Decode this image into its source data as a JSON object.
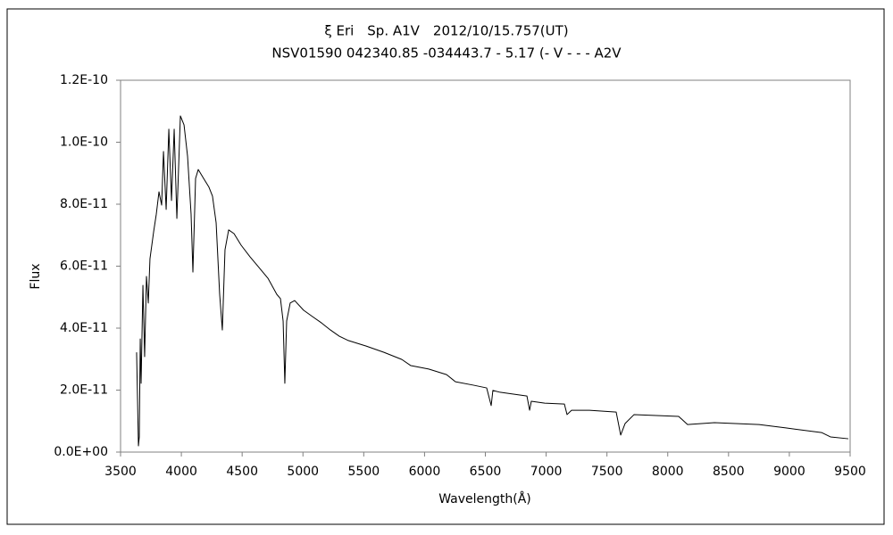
{
  "chart_data": {
    "type": "line",
    "title": "ξ Eri　Sp. A1V　2012/10/15.757(UT)",
    "subtitle": "NSV01590 042340.85 -034443.7 - 5.17 (- V - - - A2V",
    "x_label": "Wavelength(Å)",
    "y_label": "Flux",
    "xlim": [
      3500,
      9500
    ],
    "xticks": [
      3500,
      4000,
      4500,
      5000,
      5500,
      6000,
      6500,
      7000,
      7500,
      8000,
      8500,
      9000,
      9500
    ],
    "ylim": [
      0,
      1.2e-10
    ],
    "yticks": [
      {
        "value": 0,
        "label": "0.0E+00"
      },
      {
        "value": 2e-11,
        "label": "2.0E-11"
      },
      {
        "value": 4e-11,
        "label": "4.0E-11"
      },
      {
        "value": 6e-11,
        "label": "6.0E-11"
      },
      {
        "value": 8e-11,
        "label": "8.0E-11"
      },
      {
        "value": 1e-10,
        "label": "1.0E-10"
      },
      {
        "value": 1.2e-10,
        "label": "1.2E-10"
      }
    ],
    "grid": false,
    "series": [
      {
        "color": "#000000",
        "x": [
          3632,
          3647,
          3654,
          3662,
          3669,
          3684,
          3698,
          3713,
          3728,
          3742,
          3772,
          3794,
          3816,
          3838,
          3853,
          3875,
          3897,
          3919,
          3941,
          3963,
          3992,
          4022,
          4051,
          4080,
          4095,
          4117,
          4139,
          4183,
          4227,
          4256,
          4286,
          4315,
          4337,
          4359,
          4389,
          4433,
          4491,
          4565,
          4638,
          4712,
          4785,
          4815,
          4837,
          4851,
          4866,
          4895,
          4932,
          5005,
          5079,
          5152,
          5226,
          5299,
          5373,
          5520,
          5666,
          5813,
          5887,
          6034,
          6181,
          6254,
          6401,
          6511,
          6548,
          6562,
          6621,
          6731,
          6842,
          6864,
          6878,
          6988,
          7150,
          7172,
          7209,
          7356,
          7576,
          7613,
          7649,
          7723,
          8090,
          8163,
          8384,
          8751,
          8971,
          9265,
          9338,
          9485
        ],
        "values": [
          3.22e-11,
          2e-12,
          4.9e-12,
          3.65e-11,
          2.22e-11,
          5.38e-11,
          3.08e-11,
          5.67e-11,
          4.81e-11,
          6.24e-11,
          7.11e-11,
          7.68e-11,
          8.4e-11,
          7.97e-11,
          9.7e-11,
          7.83e-11,
          1.042e-10,
          8.12e-11,
          1.042e-10,
          7.54e-11,
          1.085e-10,
          1.056e-10,
          9.55e-11,
          7.68e-11,
          5.81e-11,
          8.83e-11,
          9.12e-11,
          8.83e-11,
          8.55e-11,
          8.26e-11,
          7.4e-11,
          5.09e-11,
          3.94e-11,
          6.53e-11,
          7.17e-11,
          7.05e-11,
          6.68e-11,
          6.3e-11,
          5.96e-11,
          5.61e-11,
          5.09e-11,
          4.95e-11,
          4.23e-11,
          2.22e-11,
          4.23e-11,
          4.81e-11,
          4.89e-11,
          4.58e-11,
          4.37e-11,
          4.17e-11,
          3.94e-11,
          3.74e-11,
          3.6e-11,
          3.42e-11,
          3.22e-11,
          2.99e-11,
          2.79e-11,
          2.68e-11,
          2.5e-11,
          2.27e-11,
          2.16e-11,
          2.07e-11,
          1.5e-11,
          1.99e-11,
          1.93e-11,
          1.87e-11,
          1.81e-11,
          1.35e-11,
          1.64e-11,
          1.58e-11,
          1.55e-11,
          1.21e-11,
          1.35e-11,
          1.35e-11,
          1.29e-11,
          5.5e-12,
          9.2e-12,
          1.21e-11,
          1.15e-11,
          8.9e-12,
          9.5e-12,
          8.9e-12,
          7.8e-12,
          6.3e-12,
          4.9e-12,
          4.3e-12
        ]
      }
    ]
  }
}
